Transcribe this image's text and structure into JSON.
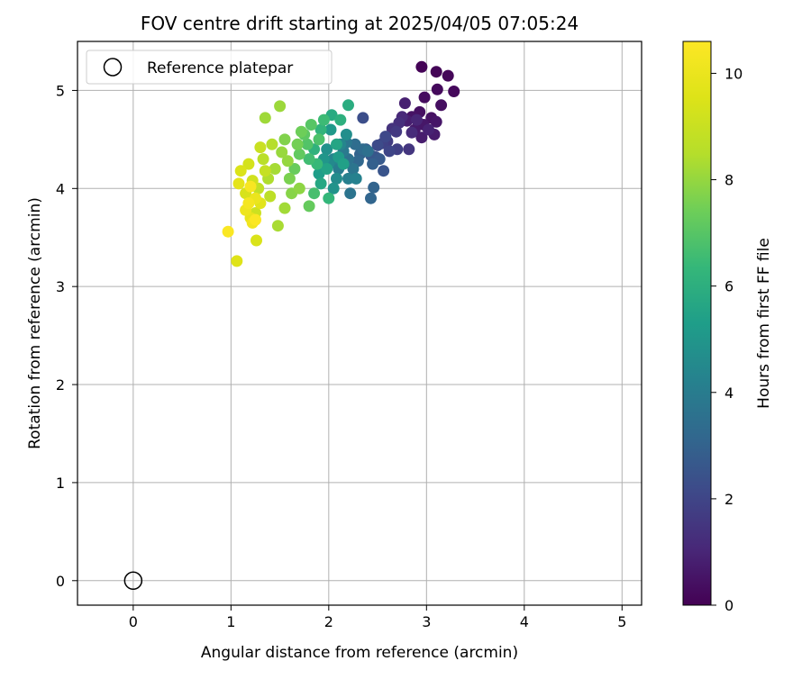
{
  "chart_data": {
    "type": "scatter",
    "title": "FOV centre drift starting at 2025/04/05 07:05:24",
    "xlabel": "Angular distance from reference (arcmin)",
    "ylabel": "Rotation from reference (arcmin)",
    "xlim": [
      -0.57,
      5.2
    ],
    "ylim": [
      -0.25,
      5.5
    ],
    "xticks": [
      0,
      1,
      2,
      3,
      4,
      5
    ],
    "yticks": [
      0,
      1,
      2,
      3,
      4,
      5
    ],
    "grid": true,
    "legend": {
      "position": "top-left",
      "entries": [
        "Reference platepar"
      ]
    },
    "reference_point": {
      "x": 0,
      "y": 0,
      "label": "Reference platepar"
    },
    "colorbar": {
      "label": "Hours from first FF file",
      "colormap": "viridis",
      "range": [
        0,
        10.6
      ],
      "ticks": [
        0,
        2,
        4,
        6,
        8,
        10
      ]
    },
    "series": [
      {
        "points": [
          [
            2.95,
            5.24,
            0.05
          ],
          [
            3.1,
            5.19,
            0.1
          ],
          [
            3.22,
            5.15,
            0.15
          ],
          [
            3.28,
            4.99,
            0.2
          ],
          [
            3.11,
            5.01,
            0.25
          ],
          [
            2.98,
            4.93,
            0.3
          ],
          [
            3.15,
            4.85,
            0.35
          ],
          [
            2.93,
            4.78,
            0.4
          ],
          [
            3.05,
            4.72,
            0.45
          ],
          [
            2.85,
            4.73,
            0.5
          ],
          [
            3.1,
            4.68,
            0.55
          ],
          [
            2.97,
            4.65,
            0.6
          ],
          [
            2.88,
            4.6,
            0.65
          ],
          [
            3.08,
            4.55,
            0.7
          ],
          [
            2.95,
            4.52,
            0.75
          ],
          [
            2.8,
            4.69,
            0.8
          ],
          [
            2.78,
            4.87,
            0.85
          ],
          [
            3.02,
            4.6,
            0.9
          ],
          [
            2.9,
            4.7,
            1
          ],
          [
            2.75,
            4.73,
            1.1
          ],
          [
            2.85,
            4.57,
            1.2
          ],
          [
            2.72,
            4.67,
            1.3
          ],
          [
            2.65,
            4.61,
            1.4
          ],
          [
            2.82,
            4.4,
            1.5
          ],
          [
            2.69,
            4.58,
            1.6
          ],
          [
            2.6,
            4.48,
            1.7
          ],
          [
            2.7,
            4.4,
            1.8
          ],
          [
            2.55,
            4.46,
            1.9
          ],
          [
            2.62,
            4.38,
            2
          ],
          [
            2.58,
            4.53,
            2.1
          ],
          [
            2.5,
            4.44,
            2.2
          ],
          [
            2.35,
            4.72,
            2.3
          ],
          [
            2.48,
            4.32,
            2.4
          ],
          [
            2.56,
            4.18,
            2.5
          ],
          [
            2.43,
            4.34,
            2.6
          ],
          [
            2.52,
            4.3,
            2.7
          ],
          [
            2.38,
            4.4,
            2.8
          ],
          [
            2.45,
            4.25,
            2.9
          ],
          [
            2.32,
            4.35,
            3
          ],
          [
            2.46,
            4.01,
            3.05
          ],
          [
            2.43,
            3.9,
            3.1
          ],
          [
            2.3,
            4.28,
            3.2
          ],
          [
            2.35,
            4.4,
            3.3
          ],
          [
            2.27,
            4.45,
            3.4
          ],
          [
            2.4,
            4.38,
            3.5
          ],
          [
            2.2,
            4.3,
            3.6
          ],
          [
            2.22,
            3.95,
            3.65
          ],
          [
            2.25,
            4.2,
            3.7
          ],
          [
            2.18,
            4.47,
            3.8
          ],
          [
            2.15,
            4.38,
            3.9
          ],
          [
            2.1,
            4.2,
            4
          ],
          [
            2.2,
            4.1,
            4.1
          ],
          [
            2.28,
            4.1,
            4.2
          ],
          [
            2.05,
            4.3,
            4.3
          ],
          [
            2.12,
            4.45,
            4.4
          ],
          [
            2.0,
            4.25,
            4.5
          ],
          [
            2.08,
            4.1,
            4.6
          ],
          [
            2.18,
            4.55,
            4.7
          ],
          [
            1.98,
            4.4,
            4.8
          ],
          [
            2.05,
            4.0,
            4.9
          ],
          [
            1.95,
            4.3,
            5
          ],
          [
            2.02,
            4.6,
            5.1
          ],
          [
            2.1,
            4.32,
            5.2
          ],
          [
            1.9,
            4.15,
            5.3
          ],
          [
            2.15,
            4.25,
            5.4
          ],
          [
            1.98,
            4.2,
            5.5
          ],
          [
            2.08,
            4.45,
            5.6
          ],
          [
            1.92,
            4.05,
            5.7
          ],
          [
            2.03,
            4.75,
            5.8
          ],
          [
            2.2,
            4.85,
            5.9
          ],
          [
            2.12,
            4.7,
            6
          ],
          [
            1.85,
            4.4,
            6.1
          ],
          [
            1.92,
            4.6,
            6.2
          ],
          [
            2.0,
            3.9,
            6.3
          ],
          [
            1.88,
            4.25,
            6.4
          ],
          [
            1.95,
            4.7,
            6.5
          ],
          [
            1.8,
            4.3,
            6.6
          ],
          [
            1.85,
            3.95,
            6.7
          ],
          [
            1.9,
            4.5,
            6.8
          ],
          [
            1.78,
            4.45,
            6.9
          ],
          [
            1.82,
            4.65,
            7
          ],
          [
            1.75,
            4.55,
            7.1
          ],
          [
            1.7,
            4.35,
            7.2
          ],
          [
            1.8,
            3.82,
            7.25
          ],
          [
            1.65,
            4.2,
            7.3
          ],
          [
            1.72,
            4.58,
            7.4
          ],
          [
            1.68,
            4.45,
            7.5
          ],
          [
            1.6,
            4.1,
            7.6
          ],
          [
            1.55,
            4.5,
            7.7
          ],
          [
            1.62,
            3.95,
            7.8
          ],
          [
            1.7,
            4.0,
            7.9
          ],
          [
            1.58,
            4.28,
            8
          ],
          [
            1.52,
            4.37,
            8.05
          ],
          [
            1.5,
            4.84,
            8.1
          ],
          [
            1.35,
            4.72,
            8.15
          ],
          [
            1.55,
            3.8,
            8.2
          ],
          [
            1.45,
            4.2,
            8.25
          ],
          [
            1.48,
            3.62,
            8.3
          ],
          [
            1.38,
            4.1,
            8.4
          ],
          [
            1.42,
            4.45,
            8.5
          ],
          [
            1.33,
            4.3,
            8.6
          ],
          [
            1.4,
            3.92,
            8.7
          ],
          [
            1.28,
            4.0,
            8.8
          ],
          [
            1.35,
            4.18,
            8.9
          ],
          [
            1.3,
            4.42,
            9
          ],
          [
            1.25,
            3.75,
            9.1
          ],
          [
            1.22,
            4.08,
            9.2
          ],
          [
            1.18,
            4.25,
            9.3
          ],
          [
            1.15,
            3.95,
            9.4
          ],
          [
            1.26,
            3.47,
            9.45
          ],
          [
            1.1,
            4.18,
            9.5
          ],
          [
            1.06,
            3.26,
            9.6
          ],
          [
            1.3,
            3.85,
            9.7
          ],
          [
            1.08,
            4.05,
            9.8
          ],
          [
            1.2,
            3.7,
            9.9
          ],
          [
            1.25,
            3.9,
            10
          ],
          [
            1.15,
            3.78,
            10.1
          ],
          [
            1.22,
            3.65,
            10.2
          ],
          [
            1.18,
            3.85,
            10.3
          ],
          [
            1.2,
            4.02,
            10.4
          ],
          [
            0.97,
            3.56,
            10.5
          ],
          [
            1.25,
            3.68,
            10.55
          ]
        ]
      }
    ]
  }
}
